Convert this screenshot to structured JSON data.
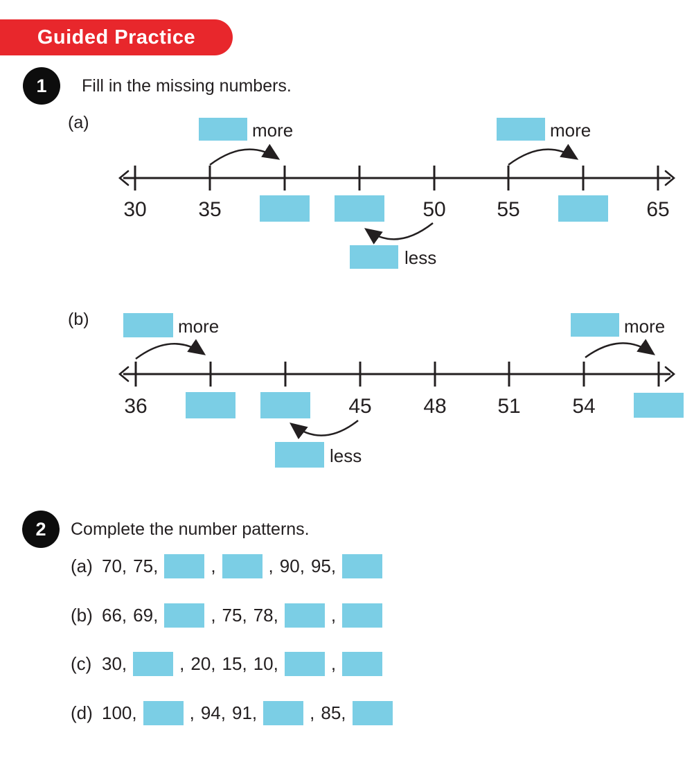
{
  "colors": {
    "box_blue": "#7bcee5",
    "banner_red": "#e8272c",
    "ink": "#231f20"
  },
  "banner": {
    "label": "Guided Practice"
  },
  "q1": {
    "number": "1",
    "prompt": "Fill in the missing numbers.",
    "parts": [
      {
        "label": "(a)",
        "tick_labels": [
          "30",
          "35",
          "",
          "",
          "50",
          "55",
          "",
          "65"
        ],
        "annotations": [
          {
            "word": "more"
          },
          {
            "word": "more"
          },
          {
            "word": "less"
          }
        ]
      },
      {
        "label": "(b)",
        "tick_labels": [
          "36",
          "",
          "",
          "45",
          "48",
          "51",
          "54",
          ""
        ],
        "annotations": [
          {
            "word": "more"
          },
          {
            "word": "more"
          },
          {
            "word": "less"
          }
        ]
      }
    ]
  },
  "q2": {
    "number": "2",
    "prompt": "Complete the number patterns.",
    "rows": [
      {
        "label": "(a)",
        "tokens": [
          "70",
          "75",
          "_",
          "_",
          "90",
          "95",
          "_"
        ]
      },
      {
        "label": "(b)",
        "tokens": [
          "66",
          "69",
          "_",
          "75",
          "78",
          "_",
          "_"
        ]
      },
      {
        "label": "(c)",
        "tokens": [
          "30",
          "_",
          "20",
          "15",
          "10",
          "_",
          "_"
        ]
      },
      {
        "label": "(d)",
        "tokens": [
          "100",
          "_",
          "94",
          "91",
          "_",
          "85",
          "_"
        ]
      }
    ]
  }
}
